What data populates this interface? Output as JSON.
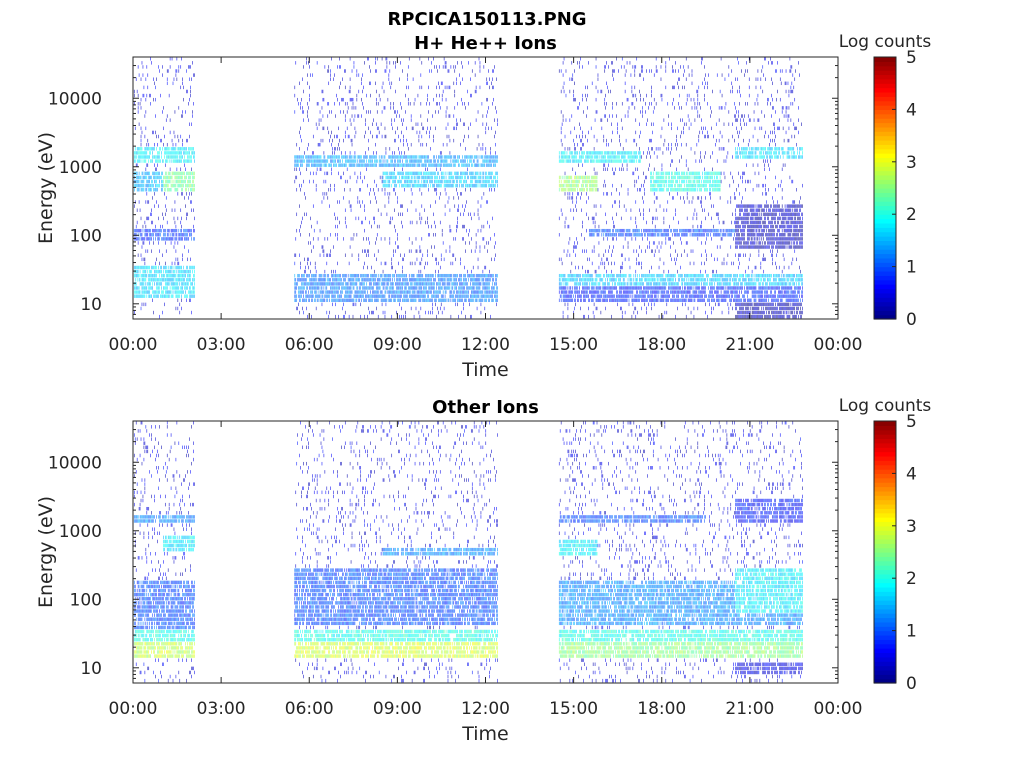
{
  "figure_title": "RPCICA150113.PNG",
  "chart_data": [
    {
      "type": "heatmap",
      "title": "H+ He++ Ions",
      "xlabel": "Time",
      "ylabel": "Energy (eV)",
      "x_ticks": [
        "00:00",
        "03:00",
        "06:00",
        "09:00",
        "12:00",
        "15:00",
        "18:00",
        "21:00",
        "00:00"
      ],
      "x_range_hours": [
        0,
        24
      ],
      "y_scale": "log",
      "y_ticks": [
        10,
        100,
        1000,
        10000
      ],
      "y_range": [
        6,
        40000
      ],
      "colorbar": {
        "title": "Log counts",
        "ticks": [
          0,
          1,
          2,
          3,
          4,
          5
        ],
        "range": [
          0,
          5
        ],
        "colormap": "jet"
      },
      "data_intervals_hours": [
        [
          0,
          2.1
        ],
        [
          5.5,
          12.4
        ],
        [
          14.5,
          22.8
        ]
      ],
      "features": [
        {
          "t": [
            0,
            2.1
          ],
          "e": [
            12,
            35
          ],
          "level": 1.7
        },
        {
          "t": [
            0,
            2.1
          ],
          "e": [
            1100,
            2000
          ],
          "level": 1.8
        },
        {
          "t": [
            1.0,
            2.1
          ],
          "e": [
            400,
            800
          ],
          "level": 2.4
        },
        {
          "t": [
            0,
            1.0
          ],
          "e": [
            400,
            800
          ],
          "level": 1.5
        },
        {
          "t": [
            0,
            2.1
          ],
          "e": [
            80,
            120
          ],
          "level": 0.9
        },
        {
          "t": [
            5.5,
            12.4
          ],
          "e": [
            10,
            28
          ],
          "level": 1.2
        },
        {
          "t": [
            5.5,
            12.4
          ],
          "e": [
            1000,
            1400
          ],
          "level": 1.4
        },
        {
          "t": [
            8.5,
            12.4
          ],
          "e": [
            500,
            800
          ],
          "level": 1.6
        },
        {
          "t": [
            14.5,
            22.8
          ],
          "e": [
            10,
            28
          ],
          "level": 0.8
        },
        {
          "t": [
            14.5,
            22.8
          ],
          "e": [
            19,
            27
          ],
          "level": 1.6
        },
        {
          "t": [
            14.5,
            17.3
          ],
          "e": [
            1100,
            1800
          ],
          "level": 1.8
        },
        {
          "t": [
            14.5,
            15.8
          ],
          "e": [
            400,
            700
          ],
          "level": 2.6
        },
        {
          "t": [
            17.6,
            20.0
          ],
          "e": [
            400,
            800
          ],
          "level": 2.0
        },
        {
          "t": [
            20.5,
            22.8
          ],
          "e": [
            1300,
            2000
          ],
          "level": 1.7
        },
        {
          "t": [
            20.5,
            22.8
          ],
          "e": [
            60,
            300
          ],
          "level": 0.3
        },
        {
          "t": [
            15.5,
            20.5
          ],
          "e": [
            90,
            120
          ],
          "level": 1.0
        },
        {
          "t": [
            20.5,
            22.8
          ],
          "e": [
            6,
            10
          ],
          "level": 0.2
        }
      ]
    },
    {
      "type": "heatmap",
      "title": "Other Ions",
      "xlabel": "Time",
      "ylabel": "Energy (eV)",
      "x_ticks": [
        "00:00",
        "03:00",
        "06:00",
        "09:00",
        "12:00",
        "15:00",
        "18:00",
        "21:00",
        "00:00"
      ],
      "x_range_hours": [
        0,
        24
      ],
      "y_scale": "log",
      "y_ticks": [
        10,
        100,
        1000,
        10000
      ],
      "y_range": [
        6,
        40000
      ],
      "colorbar": {
        "title": "Log counts",
        "ticks": [
          0,
          1,
          2,
          3,
          4,
          5
        ],
        "range": [
          0,
          5
        ],
        "colormap": "jet"
      },
      "data_intervals_hours": [
        [
          0,
          2.1
        ],
        [
          5.5,
          12.4
        ],
        [
          14.5,
          22.8
        ]
      ],
      "features": [
        {
          "t": [
            0,
            2.1
          ],
          "e": [
            14,
            24
          ],
          "level": 2.8
        },
        {
          "t": [
            0,
            2.1
          ],
          "e": [
            24,
            35
          ],
          "level": 2.0
        },
        {
          "t": [
            0,
            2.1
          ],
          "e": [
            35,
            200
          ],
          "level": 1.0
        },
        {
          "t": [
            0,
            2.1
          ],
          "e": [
            1300,
            1800
          ],
          "level": 1.3
        },
        {
          "t": [
            1.0,
            2.1
          ],
          "e": [
            500,
            800
          ],
          "level": 1.8
        },
        {
          "t": [
            5.5,
            12.4
          ],
          "e": [
            14,
            24
          ],
          "level": 2.9
        },
        {
          "t": [
            5.5,
            12.4
          ],
          "e": [
            24,
            35
          ],
          "level": 2.0
        },
        {
          "t": [
            5.5,
            12.4
          ],
          "e": [
            40,
            300
          ],
          "level": 1.0
        },
        {
          "t": [
            8.5,
            12.4
          ],
          "e": [
            450,
            600
          ],
          "level": 1.3
        },
        {
          "t": [
            14.5,
            22.8
          ],
          "e": [
            14,
            24
          ],
          "level": 2.5
        },
        {
          "t": [
            14.5,
            22.8
          ],
          "e": [
            24,
            35
          ],
          "level": 2.0
        },
        {
          "t": [
            14.5,
            22.8
          ],
          "e": [
            40,
            200
          ],
          "level": 1.3
        },
        {
          "t": [
            20.5,
            22.8
          ],
          "e": [
            60,
            300
          ],
          "level": 1.8
        },
        {
          "t": [
            14.5,
            15.8
          ],
          "e": [
            400,
            700
          ],
          "level": 1.8
        },
        {
          "t": [
            14.5,
            19.5
          ],
          "e": [
            1300,
            1800
          ],
          "level": 1.0
        },
        {
          "t": [
            20.5,
            22.8
          ],
          "e": [
            1300,
            3000
          ],
          "level": 0.7
        },
        {
          "t": [
            20.5,
            22.8
          ],
          "e": [
            8,
            12
          ],
          "level": 0.5
        }
      ]
    }
  ]
}
